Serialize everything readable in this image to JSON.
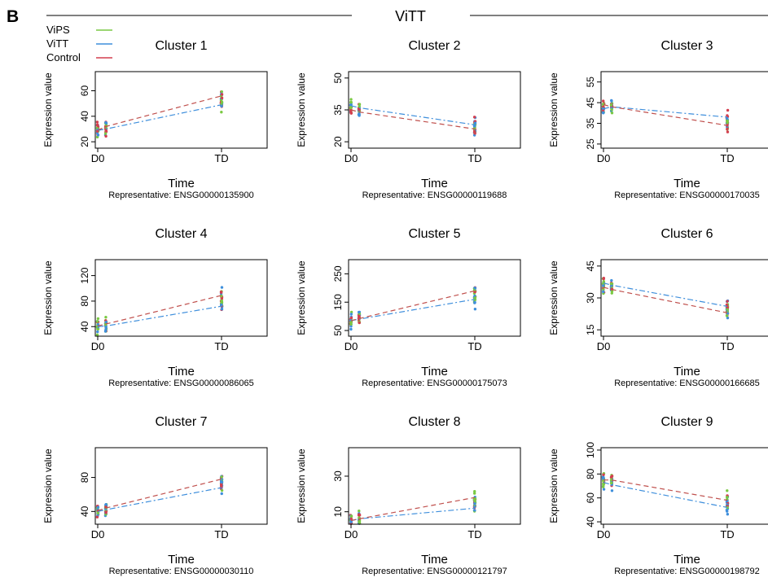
{
  "figure": {
    "panel_letter": "B",
    "title": "ViTT",
    "legend": [
      {
        "label": "ViPS",
        "color": "#7ac943"
      },
      {
        "label": "ViTT",
        "color": "#3f8fdc"
      },
      {
        "label": "Control",
        "color": "#d43f4f"
      }
    ]
  },
  "chart_data": [
    {
      "type": "scatter",
      "title": "Cluster 1",
      "xlabel": "Time",
      "ylabel": "Expression value",
      "x_categories": [
        "D0",
        "",
        "TD"
      ],
      "xtick_labels": [
        "D0",
        "TD"
      ],
      "ylim": [
        15,
        75
      ],
      "yticks": [
        20,
        40,
        60
      ],
      "representative": "Representative: ENSG00000135900",
      "series": [
        {
          "name": "ViTT",
          "mean": [
            29,
            30,
            49
          ]
        },
        {
          "name": "Control",
          "mean": [
            29,
            32,
            56
          ]
        }
      ]
    },
    {
      "type": "scatter",
      "title": "Cluster 2",
      "xlabel": "Time",
      "ylabel": "Expression value",
      "x_categories": [
        "D0",
        "",
        "TD"
      ],
      "xtick_labels": [
        "D0",
        "TD"
      ],
      "ylim": [
        17,
        53
      ],
      "yticks": [
        20,
        35,
        50
      ],
      "representative": "Representative: ENSG00000119688",
      "series": [
        {
          "name": "ViTT",
          "mean": [
            37,
            36,
            28
          ]
        },
        {
          "name": "Control",
          "mean": [
            35,
            34,
            26
          ]
        }
      ]
    },
    {
      "type": "scatter",
      "title": "Cluster 3",
      "xlabel": "Time",
      "ylabel": "Expression value",
      "x_categories": [
        "D0",
        "",
        "TD"
      ],
      "xtick_labels": [
        "D0",
        "TD"
      ],
      "ylim": [
        23,
        60
      ],
      "yticks": [
        25,
        35,
        45,
        55
      ],
      "representative": "Representative: ENSG00000170035",
      "series": [
        {
          "name": "ViTT",
          "mean": [
            42,
            43,
            38
          ]
        },
        {
          "name": "Control",
          "mean": [
            44,
            43,
            34
          ]
        }
      ]
    },
    {
      "type": "scatter",
      "title": "Cluster 4",
      "xlabel": "Time",
      "ylabel": "Expression value",
      "x_categories": [
        "D0",
        "",
        "TD"
      ],
      "xtick_labels": [
        "D0",
        "TD"
      ],
      "ylim": [
        25,
        145
      ],
      "yticks": [
        40,
        80,
        120
      ],
      "representative": "Representative: ENSG00000086065",
      "series": [
        {
          "name": "ViTT",
          "mean": [
            40,
            41,
            72
          ]
        },
        {
          "name": "Control",
          "mean": [
            41,
            44,
            89
          ]
        }
      ]
    },
    {
      "type": "scatter",
      "title": "Cluster 5",
      "xlabel": "Time",
      "ylabel": "Expression value",
      "x_categories": [
        "D0",
        "",
        "TD"
      ],
      "xtick_labels": [
        "D0",
        "TD"
      ],
      "ylim": [
        30,
        300
      ],
      "yticks": [
        50,
        150,
        250
      ],
      "representative": "Representative: ENSG00000175073",
      "series": [
        {
          "name": "ViTT",
          "mean": [
            85,
            90,
            160
          ]
        },
        {
          "name": "Control",
          "mean": [
            85,
            92,
            190
          ]
        }
      ]
    },
    {
      "type": "scatter",
      "title": "Cluster 6",
      "xlabel": "Time",
      "ylabel": "Expression value",
      "x_categories": [
        "D0",
        "",
        "TD"
      ],
      "xtick_labels": [
        "D0",
        "TD"
      ],
      "ylim": [
        12,
        48
      ],
      "yticks": [
        15,
        30,
        45
      ],
      "representative": "Representative: ENSG00000166685",
      "series": [
        {
          "name": "ViTT",
          "mean": [
            37,
            36,
            26
          ]
        },
        {
          "name": "Control",
          "mean": [
            35,
            34,
            23
          ]
        }
      ]
    },
    {
      "type": "scatter",
      "title": "Cluster 7",
      "xlabel": "Time",
      "ylabel": "Expression value",
      "x_categories": [
        "D0",
        "",
        "TD"
      ],
      "xtick_labels": [
        "D0",
        "TD"
      ],
      "ylim": [
        25,
        115
      ],
      "yticks": [
        40,
        80
      ],
      "representative": "Representative: ENSG00000030110",
      "series": [
        {
          "name": "ViTT",
          "mean": [
            40,
            42,
            68
          ]
        },
        {
          "name": "Control",
          "mean": [
            41,
            44,
            78
          ]
        }
      ]
    },
    {
      "type": "scatter",
      "title": "Cluster 8",
      "xlabel": "Time",
      "ylabel": "Expression value",
      "x_categories": [
        "D0",
        "",
        "TD"
      ],
      "xtick_labels": [
        "D0",
        "TD"
      ],
      "ylim": [
        3,
        46
      ],
      "yticks": [
        10,
        30
      ],
      "representative": "Representative: ENSG00000121797",
      "series": [
        {
          "name": "ViTT",
          "mean": [
            5,
            6,
            12
          ]
        },
        {
          "name": "Control",
          "mean": [
            5,
            6,
            18
          ]
        }
      ]
    },
    {
      "type": "scatter",
      "title": "Cluster 9",
      "xlabel": "Time",
      "ylabel": "Expression value",
      "x_categories": [
        "D0",
        "",
        "TD"
      ],
      "xtick_labels": [
        "D0",
        "TD"
      ],
      "ylim": [
        38,
        102
      ],
      "yticks": [
        40,
        60,
        80,
        100
      ],
      "representative": "Representative: ENSG00000198792",
      "series": [
        {
          "name": "ViTT",
          "mean": [
            73,
            71,
            52
          ]
        },
        {
          "name": "Control",
          "mean": [
            75,
            75,
            58
          ]
        }
      ]
    }
  ]
}
